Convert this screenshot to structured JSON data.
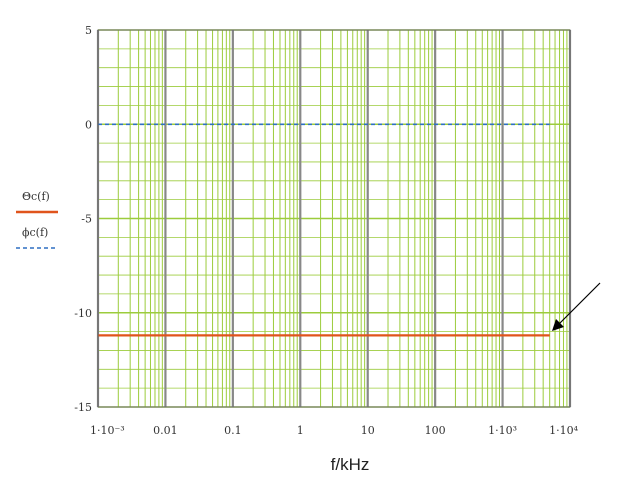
{
  "chart_data": {
    "type": "line",
    "xscale": "log",
    "xlim": [
      0.001,
      10000
    ],
    "ylim": [
      -15,
      5
    ],
    "grid": true,
    "xlabel": "f/kHz",
    "ylabel": "",
    "x_ticks": [
      {
        "value": 0.001,
        "label": "1·10⁻³"
      },
      {
        "value": 0.01,
        "label": "0.01"
      },
      {
        "value": 0.1,
        "label": "0.1"
      },
      {
        "value": 1,
        "label": "1"
      },
      {
        "value": 10,
        "label": "10"
      },
      {
        "value": 100,
        "label": "100"
      },
      {
        "value": 1000,
        "label": "1·10³"
      },
      {
        "value": 10000,
        "label": "1·10⁴"
      }
    ],
    "y_ticks": [
      {
        "value": 5,
        "label": "5"
      },
      {
        "value": 0,
        "label": "0"
      },
      {
        "value": -5,
        "label": "-5"
      },
      {
        "value": -10,
        "label": "-10"
      },
      {
        "value": -15,
        "label": "-15"
      }
    ],
    "series": [
      {
        "name": "Θc(f)",
        "color": "#e0541c",
        "style": "solid",
        "x": [
          0.001,
          5000
        ],
        "y": [
          -11.2,
          -11.2
        ]
      },
      {
        "name": "ϕc(f)",
        "color": "#2f6fc2",
        "style": "dashed",
        "x": [
          0.001,
          5000
        ],
        "y": [
          0,
          0
        ]
      }
    ],
    "legend_position": "left",
    "annotation": "arrow pointing to end of Θc(f) line"
  },
  "colors": {
    "grid_minor": "#9ccc3c",
    "grid_major": "#888888",
    "plot_border": "#666666"
  }
}
